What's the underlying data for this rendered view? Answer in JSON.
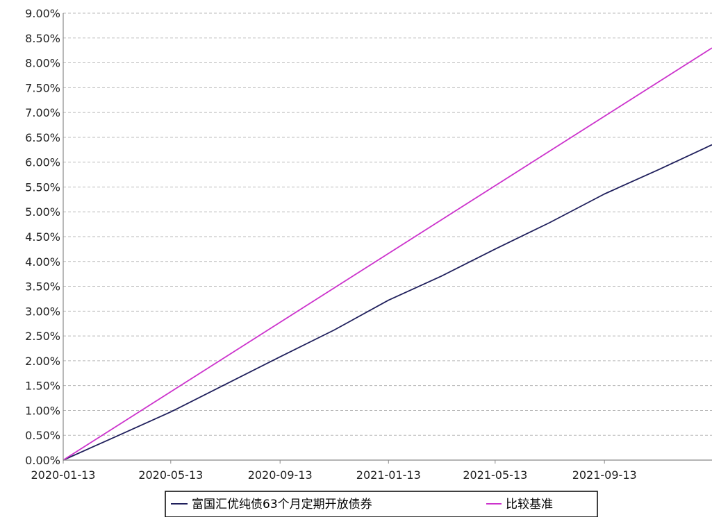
{
  "chart_data": {
    "type": "line",
    "title": "",
    "xlabel": "",
    "ylabel": "",
    "x_ticks": [
      "2020-01-13",
      "2020-05-13",
      "2020-09-13",
      "2021-01-13",
      "2021-05-13",
      "2021-09-13"
    ],
    "xlim": [
      "2020-01-13",
      "2022-01-12"
    ],
    "y_ticks": [
      "0.00%",
      "0.50%",
      "1.00%",
      "1.50%",
      "2.00%",
      "2.50%",
      "3.00%",
      "3.50%",
      "4.00%",
      "4.50%",
      "5.00%",
      "5.50%",
      "6.00%",
      "6.50%",
      "7.00%",
      "7.50%",
      "8.00%",
      "8.50%",
      "9.00%"
    ],
    "ylim": [
      0,
      9
    ],
    "y_unit": "%",
    "grid": "horizontal-dashed",
    "legend_position": "bottom",
    "series": [
      {
        "name": "富国汇优纯债63个月定期开放债券",
        "color": "#1f1f5c",
        "x": [
          "2020-01-13",
          "2020-03-13",
          "2020-05-13",
          "2020-07-13",
          "2020-09-13",
          "2020-11-13",
          "2021-01-13",
          "2021-03-13",
          "2021-05-13",
          "2021-07-13",
          "2021-09-13",
          "2021-11-13",
          "2022-01-12"
        ],
        "y": [
          0.0,
          0.48,
          0.97,
          1.52,
          2.08,
          2.62,
          3.22,
          3.7,
          4.25,
          4.78,
          5.36,
          5.85,
          6.35
        ]
      },
      {
        "name": "比较基准",
        "color": "#cc33cc",
        "x": [
          "2020-01-13",
          "2022-01-12"
        ],
        "y": [
          0.0,
          8.3
        ]
      }
    ]
  }
}
